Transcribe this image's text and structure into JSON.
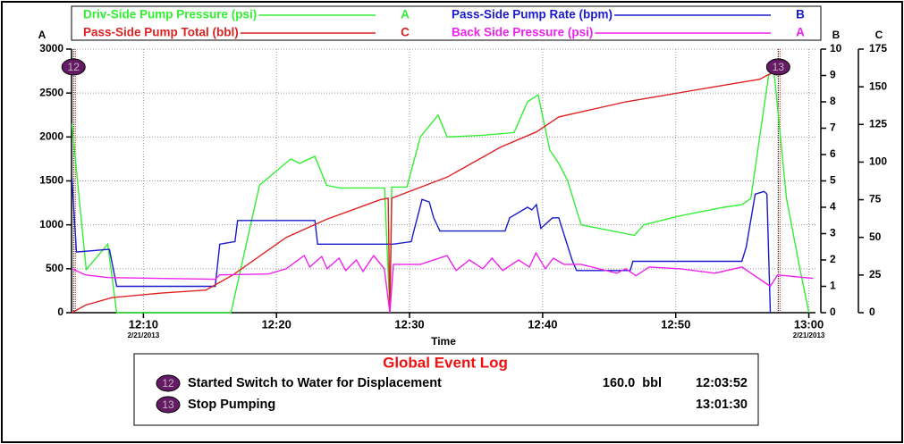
{
  "chart_data": {
    "type": "line",
    "xlabel": "Time",
    "xlim": [
      4.6,
      60.5
    ],
    "xticks": [
      {
        "value": 10,
        "label": "12:10"
      },
      {
        "value": 20,
        "label": "12:20"
      },
      {
        "value": 30,
        "label": "12:30"
      },
      {
        "value": 40,
        "label": "12:40"
      },
      {
        "value": 50,
        "label": "12:50"
      },
      {
        "value": 60,
        "label": "13:00"
      }
    ],
    "date_labels": [
      {
        "x": 10,
        "label": "2/21/2013"
      },
      {
        "x": 60,
        "label": "2/21/2013"
      }
    ],
    "axis_letters": {
      "y": "A",
      "y2": "B",
      "y3": "C"
    },
    "ylim": [
      0,
      3000
    ],
    "yticks": [
      0,
      500,
      1000,
      1500,
      2000,
      2500,
      3000
    ],
    "y2lim": [
      0,
      10
    ],
    "y2ticks": [
      0,
      1,
      2,
      3,
      4,
      5,
      6,
      7,
      8,
      9,
      10
    ],
    "y3lim": [
      0,
      175
    ],
    "y3ticks": [
      0,
      25,
      50,
      75,
      100,
      125,
      150,
      175
    ],
    "grid": true,
    "series": [
      {
        "name": "Driv-Side Pump Pressure (psi)",
        "letter": "A",
        "axis": "y",
        "color": "#33ee33",
        "x": [
          4.63,
          5.7,
          7.32,
          7.99,
          16.58,
          18.72,
          21.07,
          21.74,
          22.89,
          23.76,
          24.77,
          28.12,
          28.52,
          28.66,
          29.8,
          30.81,
          32.15,
          32.82,
          35.5,
          37.85,
          38.86,
          39.66,
          40.54,
          41.21,
          41.88,
          42.89,
          46.24,
          46.91,
          47.58,
          50.27,
          53.62,
          54.97,
          55.64,
          56.31,
          56.98,
          57.38,
          58.32,
          59.33,
          60.0
        ],
        "values": [
          2150,
          490,
          780,
          0,
          0,
          1450,
          1750,
          1700,
          1780,
          1450,
          1420,
          1420,
          0,
          1430,
          1430,
          2000,
          2250,
          2000,
          2020,
          2050,
          2400,
          2480,
          1850,
          1700,
          1500,
          1000,
          900,
          880,
          1000,
          1100,
          1200,
          1230,
          1300,
          2000,
          2700,
          2750,
          1300,
          500,
          0
        ]
      },
      {
        "name": "Pass-Side Pump Rate (bpm)",
        "letter": "B",
        "axis": "y2",
        "color": "#1a1acc",
        "x": [
          4.63,
          4.97,
          7.32,
          7.45,
          7.99,
          15.4,
          15.74,
          16.88,
          17.08,
          22.89,
          23.09,
          28.79,
          30.13,
          30.27,
          30.94,
          31.48,
          31.81,
          32.28,
          37.18,
          37.52,
          38.86,
          39.19,
          39.53,
          39.87,
          40.74,
          41.21,
          42.21,
          42.55,
          46.58,
          46.78,
          54.97,
          55.3,
          55.97,
          56.64,
          56.85,
          57.11
        ],
        "values": [
          5.1,
          2.3,
          2.4,
          2.4,
          1.0,
          1.0,
          2.6,
          2.7,
          3.5,
          3.5,
          2.6,
          2.6,
          2.7,
          3.0,
          4.3,
          4.2,
          3.6,
          3.1,
          3.1,
          3.6,
          4.0,
          3.9,
          4.1,
          3.2,
          3.6,
          3.6,
          2.0,
          1.6,
          1.6,
          1.95,
          1.95,
          2.5,
          4.5,
          4.6,
          4.5,
          0
        ]
      },
      {
        "name": "Pass-Side Pump Total (bbl)",
        "letter": "C",
        "axis": "y3",
        "color": "#dd2222",
        "x": [
          4.63,
          5.64,
          7.65,
          11.34,
          14.7,
          16.71,
          20.74,
          23.76,
          27.79,
          28.39,
          28.52,
          28.66,
          32.82,
          36.85,
          39.53,
          41.21,
          46.24,
          52.95,
          56.31,
          57.38
        ],
        "values": [
          0,
          5,
          10,
          13,
          15,
          25,
          50,
          62,
          75,
          76,
          0,
          76,
          90,
          110,
          120,
          130,
          140,
          150,
          155,
          160
        ]
      },
      {
        "name": "Back Side Pressure (psi)",
        "letter": "A",
        "axis": "y",
        "color": "#ee22ee",
        "x": [
          4.63,
          5.64,
          7.32,
          15.4,
          15.74,
          19.4,
          20.74,
          22.08,
          22.5,
          23.4,
          23.8,
          24.7,
          25.2,
          26.0,
          26.5,
          27.3,
          28.1,
          28.52,
          28.79,
          30.81,
          32.82,
          33.5,
          34.5,
          35.5,
          36.2,
          37.0,
          38.19,
          39.0,
          39.5,
          40.2,
          40.8,
          41.6,
          42.89,
          45.57,
          46.24,
          47.0,
          48.0,
          50.27,
          52.95,
          54.97,
          57.11,
          57.65,
          59.66,
          60.33
        ],
        "values": [
          500,
          430,
          400,
          380,
          430,
          440,
          500,
          650,
          520,
          640,
          500,
          620,
          480,
          600,
          470,
          650,
          500,
          0,
          550,
          550,
          650,
          480,
          600,
          500,
          620,
          480,
          600,
          520,
          680,
          500,
          620,
          550,
          550,
          450,
          500,
          420,
          520,
          500,
          450,
          520,
          300,
          430,
          400,
          390
        ]
      }
    ],
    "markers": [
      {
        "label": "12",
        "x": 4.75
      },
      {
        "label": "13",
        "x": 57.7
      }
    ]
  },
  "event_log": {
    "title": "Global Event Log",
    "rows": [
      {
        "marker": "12",
        "text": "Started Switch to Water for Displacement",
        "amount": "160.0  bbl",
        "time": "12:03:52"
      },
      {
        "marker": "13",
        "text": "Stop Pumping",
        "time": "13:01:30"
      }
    ]
  }
}
